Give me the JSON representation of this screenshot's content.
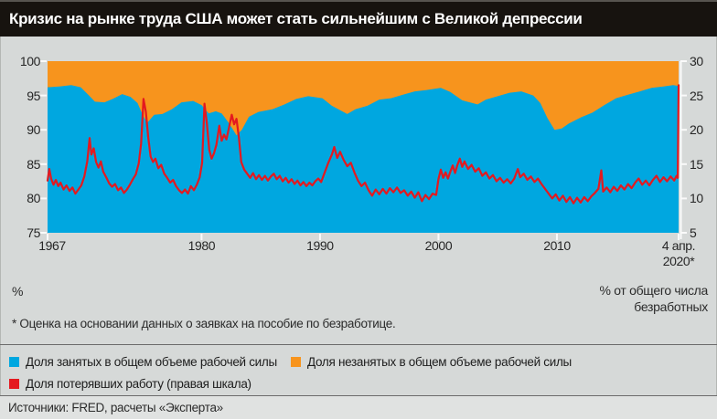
{
  "title": "Кризис на рынке труда США может стать сильнейшим с Великой депрессии",
  "footnote": "* Оценка на основании данных о заявках на пособие по безработице.",
  "source": "Источники: FRED, расчеты «Эксперта»",
  "axis_units": {
    "left": "%",
    "right_line1": "% от общего числа",
    "right_line2": "безработных"
  },
  "colors": {
    "employed_area": "#00a7e0",
    "unemployed_area": "#f7941d",
    "job_losers_line": "#e4191f",
    "title_bar_bg": "#17130f",
    "title_text": "#ffffff",
    "page_bg": "#d6d9d8",
    "source_band_bg": "#e0e2e1",
    "axis_text": "#262626",
    "tick_color": "#fafafa"
  },
  "legend": {
    "items": [
      {
        "label": "Доля занятых в общем объеме рабочей силы"
      },
      {
        "label": "Доля незанятых в общем объеме рабочей силы"
      },
      {
        "label": "Доля потерявших работу (правая шкала)"
      }
    ]
  },
  "chart_data": {
    "type": "area",
    "title": "Кризис на рынке труда США может стать сильнейшим с Великой депрессии",
    "grid": false,
    "legend_position": "bottom-left",
    "x_axis": {
      "range": [
        1967,
        2020.27
      ],
      "ticks": [
        {
          "year": 1967,
          "lines": [
            "1967"
          ]
        },
        {
          "year": 1980,
          "lines": [
            "1980"
          ]
        },
        {
          "year": 1990,
          "lines": [
            "1990"
          ]
        },
        {
          "year": 2000,
          "lines": [
            "2000"
          ]
        },
        {
          "year": 2010,
          "lines": [
            "2010"
          ]
        },
        {
          "year": 2020.27,
          "lines": [
            "4 апр.",
            "2020*"
          ]
        }
      ]
    },
    "left_axis": {
      "label": "%",
      "range": [
        75,
        100
      ],
      "ticks": [
        100,
        95,
        90,
        85,
        80,
        75
      ]
    },
    "right_axis": {
      "label": "% от общего числа безработных",
      "range": [
        5,
        30
      ],
      "ticks": [
        30,
        25,
        20,
        15,
        10,
        5
      ]
    },
    "series": [
      {
        "name": "Доля занятых в общем объеме рабочей силы",
        "type": "area",
        "axis": "left",
        "color": "#00a7e0",
        "points": [
          [
            1967.0,
            96.2
          ],
          [
            1968.0,
            96.3
          ],
          [
            1969.0,
            96.5
          ],
          [
            1969.8,
            96.2
          ],
          [
            1970.5,
            95.0
          ],
          [
            1971.0,
            94.1
          ],
          [
            1971.8,
            94.0
          ],
          [
            1972.5,
            94.5
          ],
          [
            1973.3,
            95.2
          ],
          [
            1974.0,
            94.8
          ],
          [
            1974.6,
            93.9
          ],
          [
            1975.0,
            92.3
          ],
          [
            1975.4,
            91.0
          ],
          [
            1976.0,
            92.2
          ],
          [
            1976.7,
            92.3
          ],
          [
            1977.5,
            93.0
          ],
          [
            1978.3,
            94.0
          ],
          [
            1979.3,
            94.2
          ],
          [
            1980.0,
            93.6
          ],
          [
            1980.6,
            92.4
          ],
          [
            1981.2,
            92.7
          ],
          [
            1981.7,
            92.4
          ],
          [
            1982.3,
            91.0
          ],
          [
            1982.95,
            89.2
          ],
          [
            1983.4,
            90.0
          ],
          [
            1984.0,
            91.9
          ],
          [
            1984.8,
            92.6
          ],
          [
            1986.0,
            93.0
          ],
          [
            1987.0,
            93.7
          ],
          [
            1988.0,
            94.5
          ],
          [
            1989.0,
            94.9
          ],
          [
            1990.2,
            94.6
          ],
          [
            1991.0,
            93.5
          ],
          [
            1992.3,
            92.3
          ],
          [
            1993.0,
            93.0
          ],
          [
            1994.0,
            93.5
          ],
          [
            1995.0,
            94.4
          ],
          [
            1996.0,
            94.6
          ],
          [
            1997.0,
            95.1
          ],
          [
            1998.0,
            95.6
          ],
          [
            1999.0,
            95.8
          ],
          [
            2000.2,
            96.1
          ],
          [
            2001.0,
            95.5
          ],
          [
            2002.0,
            94.3
          ],
          [
            2003.3,
            93.7
          ],
          [
            2004.0,
            94.4
          ],
          [
            2005.0,
            94.9
          ],
          [
            2006.0,
            95.4
          ],
          [
            2007.0,
            95.6
          ],
          [
            2008.0,
            95.0
          ],
          [
            2008.6,
            93.9
          ],
          [
            2009.2,
            91.7
          ],
          [
            2009.8,
            90.0
          ],
          [
            2010.4,
            90.2
          ],
          [
            2011.0,
            90.9
          ],
          [
            2012.0,
            91.8
          ],
          [
            2013.0,
            92.5
          ],
          [
            2014.0,
            93.6
          ],
          [
            2015.0,
            94.6
          ],
          [
            2016.0,
            95.1
          ],
          [
            2017.0,
            95.6
          ],
          [
            2018.0,
            96.1
          ],
          [
            2019.0,
            96.3
          ],
          [
            2019.8,
            96.5
          ],
          [
            2020.27,
            96.4
          ]
        ]
      },
      {
        "name": "Доля незанятых в общем объеме рабочей силы",
        "type": "area-stacked-to-100",
        "axis": "left",
        "color": "#f7941d",
        "note": "заполняет пространство от доли занятых до 100%"
      },
      {
        "name": "Доля потерявших работу (правая шкала)",
        "type": "line",
        "axis": "right",
        "color": "#e4191f",
        "points": [
          [
            1967.0,
            12.6
          ],
          [
            1967.15,
            14.3
          ],
          [
            1967.3,
            12.9
          ],
          [
            1967.5,
            12.0
          ],
          [
            1967.7,
            12.7
          ],
          [
            1967.9,
            11.8
          ],
          [
            1968.1,
            12.3
          ],
          [
            1968.35,
            11.3
          ],
          [
            1968.6,
            11.9
          ],
          [
            1968.85,
            11.1
          ],
          [
            1969.1,
            11.6
          ],
          [
            1969.35,
            10.7
          ],
          [
            1969.6,
            11.3
          ],
          [
            1969.85,
            11.9
          ],
          [
            1970.1,
            13.2
          ],
          [
            1970.35,
            15.4
          ],
          [
            1970.55,
            18.8
          ],
          [
            1970.7,
            16.4
          ],
          [
            1970.9,
            17.3
          ],
          [
            1971.1,
            15.3
          ],
          [
            1971.3,
            14.5
          ],
          [
            1971.5,
            15.4
          ],
          [
            1971.7,
            13.9
          ],
          [
            1971.95,
            13.1
          ],
          [
            1972.2,
            12.2
          ],
          [
            1972.45,
            11.7
          ],
          [
            1972.7,
            12.1
          ],
          [
            1972.95,
            11.2
          ],
          [
            1973.2,
            11.6
          ],
          [
            1973.45,
            10.8
          ],
          [
            1973.7,
            11.3
          ],
          [
            1973.95,
            12.0
          ],
          [
            1974.2,
            12.8
          ],
          [
            1974.45,
            13.5
          ],
          [
            1974.7,
            15.1
          ],
          [
            1974.9,
            18.0
          ],
          [
            1975.1,
            24.5
          ],
          [
            1975.3,
            22.6
          ],
          [
            1975.5,
            18.9
          ],
          [
            1975.7,
            16.1
          ],
          [
            1975.9,
            15.3
          ],
          [
            1976.1,
            15.8
          ],
          [
            1976.35,
            14.4
          ],
          [
            1976.6,
            14.9
          ],
          [
            1976.85,
            13.6
          ],
          [
            1977.1,
            13.0
          ],
          [
            1977.35,
            12.3
          ],
          [
            1977.6,
            12.7
          ],
          [
            1977.85,
            11.8
          ],
          [
            1978.1,
            11.2
          ],
          [
            1978.35,
            10.8
          ],
          [
            1978.6,
            11.3
          ],
          [
            1978.85,
            10.7
          ],
          [
            1979.1,
            11.8
          ],
          [
            1979.35,
            11.2
          ],
          [
            1979.6,
            12.0
          ],
          [
            1979.85,
            13.1
          ],
          [
            1980.05,
            15.2
          ],
          [
            1980.25,
            23.8
          ],
          [
            1980.45,
            20.9
          ],
          [
            1980.65,
            17.1
          ],
          [
            1980.85,
            15.8
          ],
          [
            1981.05,
            16.6
          ],
          [
            1981.25,
            17.8
          ],
          [
            1981.5,
            20.6
          ],
          [
            1981.7,
            18.4
          ],
          [
            1981.9,
            19.3
          ],
          [
            1982.1,
            18.6
          ],
          [
            1982.3,
            20.2
          ],
          [
            1982.55,
            22.2
          ],
          [
            1982.75,
            20.8
          ],
          [
            1982.95,
            21.6
          ],
          [
            1983.15,
            18.9
          ],
          [
            1983.35,
            15.3
          ],
          [
            1983.6,
            14.2
          ],
          [
            1983.85,
            13.6
          ],
          [
            1984.1,
            13.0
          ],
          [
            1984.35,
            13.7
          ],
          [
            1984.6,
            12.8
          ],
          [
            1984.85,
            13.4
          ],
          [
            1985.1,
            12.7
          ],
          [
            1985.35,
            13.3
          ],
          [
            1985.6,
            12.6
          ],
          [
            1985.85,
            13.2
          ],
          [
            1986.1,
            13.6
          ],
          [
            1986.35,
            12.8
          ],
          [
            1986.6,
            13.3
          ],
          [
            1986.85,
            12.5
          ],
          [
            1987.1,
            13.0
          ],
          [
            1987.35,
            12.3
          ],
          [
            1987.6,
            12.8
          ],
          [
            1987.85,
            12.1
          ],
          [
            1988.1,
            12.6
          ],
          [
            1988.35,
            11.9
          ],
          [
            1988.6,
            12.4
          ],
          [
            1988.85,
            11.8
          ],
          [
            1989.1,
            12.3
          ],
          [
            1989.35,
            11.9
          ],
          [
            1989.6,
            12.5
          ],
          [
            1989.85,
            12.9
          ],
          [
            1990.1,
            12.4
          ],
          [
            1990.4,
            13.8
          ],
          [
            1990.7,
            15.2
          ],
          [
            1991.0,
            16.4
          ],
          [
            1991.2,
            17.5
          ],
          [
            1991.45,
            15.9
          ],
          [
            1991.7,
            16.8
          ],
          [
            1992.0,
            15.6
          ],
          [
            1992.3,
            14.7
          ],
          [
            1992.6,
            15.2
          ],
          [
            1992.9,
            13.8
          ],
          [
            1993.2,
            12.6
          ],
          [
            1993.5,
            11.8
          ],
          [
            1993.8,
            12.3
          ],
          [
            1994.1,
            11.2
          ],
          [
            1994.4,
            10.4
          ],
          [
            1994.7,
            11.3
          ],
          [
            1995.0,
            10.6
          ],
          [
            1995.3,
            11.4
          ],
          [
            1995.6,
            10.7
          ],
          [
            1995.9,
            11.5
          ],
          [
            1996.2,
            10.9
          ],
          [
            1996.5,
            11.6
          ],
          [
            1996.8,
            10.8
          ],
          [
            1997.1,
            11.2
          ],
          [
            1997.4,
            10.4
          ],
          [
            1997.7,
            11.0
          ],
          [
            1998.0,
            10.1
          ],
          [
            1998.3,
            10.9
          ],
          [
            1998.6,
            9.6
          ],
          [
            1998.9,
            10.5
          ],
          [
            1999.2,
            9.9
          ],
          [
            1999.5,
            10.7
          ],
          [
            1999.8,
            10.5
          ],
          [
            2000.0,
            12.8
          ],
          [
            2000.2,
            14.2
          ],
          [
            2000.4,
            13.0
          ],
          [
            2000.6,
            13.8
          ],
          [
            2000.8,
            12.9
          ],
          [
            2001.0,
            13.9
          ],
          [
            2001.2,
            14.8
          ],
          [
            2001.4,
            13.7
          ],
          [
            2001.6,
            14.9
          ],
          [
            2001.8,
            15.8
          ],
          [
            2002.0,
            14.6
          ],
          [
            2002.2,
            15.4
          ],
          [
            2002.5,
            14.3
          ],
          [
            2002.8,
            14.9
          ],
          [
            2003.1,
            13.9
          ],
          [
            2003.4,
            14.4
          ],
          [
            2003.7,
            13.3
          ],
          [
            2004.0,
            13.8
          ],
          [
            2004.3,
            12.9
          ],
          [
            2004.6,
            13.4
          ],
          [
            2004.9,
            12.5
          ],
          [
            2005.2,
            13.0
          ],
          [
            2005.5,
            12.3
          ],
          [
            2005.8,
            12.8
          ],
          [
            2006.1,
            12.2
          ],
          [
            2006.4,
            12.9
          ],
          [
            2006.7,
            14.3
          ],
          [
            2006.9,
            13.1
          ],
          [
            2007.2,
            13.6
          ],
          [
            2007.5,
            12.7
          ],
          [
            2007.8,
            13.2
          ],
          [
            2008.1,
            12.4
          ],
          [
            2008.4,
            12.9
          ],
          [
            2008.7,
            12.1
          ],
          [
            2009.0,
            11.4
          ],
          [
            2009.3,
            10.7
          ],
          [
            2009.6,
            10.0
          ],
          [
            2009.9,
            10.6
          ],
          [
            2010.2,
            9.7
          ],
          [
            2010.5,
            10.4
          ],
          [
            2010.8,
            9.5
          ],
          [
            2011.1,
            10.2
          ],
          [
            2011.4,
            9.3
          ],
          [
            2011.7,
            10.1
          ],
          [
            2012.0,
            9.4
          ],
          [
            2012.3,
            10.2
          ],
          [
            2012.6,
            9.6
          ],
          [
            2012.9,
            10.3
          ],
          [
            2013.2,
            10.8
          ],
          [
            2013.5,
            11.4
          ],
          [
            2013.75,
            14.1
          ],
          [
            2013.9,
            11.0
          ],
          [
            2014.2,
            11.6
          ],
          [
            2014.5,
            10.9
          ],
          [
            2014.8,
            11.7
          ],
          [
            2015.1,
            11.1
          ],
          [
            2015.4,
            11.9
          ],
          [
            2015.7,
            11.3
          ],
          [
            2016.0,
            12.1
          ],
          [
            2016.3,
            11.5
          ],
          [
            2016.6,
            12.3
          ],
          [
            2016.9,
            12.9
          ],
          [
            2017.2,
            12.0
          ],
          [
            2017.5,
            12.6
          ],
          [
            2017.8,
            11.9
          ],
          [
            2018.1,
            12.7
          ],
          [
            2018.4,
            13.3
          ],
          [
            2018.7,
            12.4
          ],
          [
            2019.0,
            13.1
          ],
          [
            2019.3,
            12.5
          ],
          [
            2019.6,
            13.2
          ],
          [
            2019.9,
            12.6
          ],
          [
            2020.1,
            13.3
          ],
          [
            2020.2,
            13.0
          ],
          [
            2020.27,
            26.5
          ]
        ]
      }
    ]
  }
}
